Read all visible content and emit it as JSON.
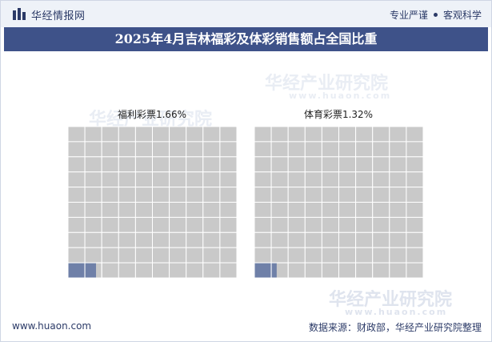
{
  "header": {
    "brand_name": "华经情报网",
    "brand_icon": "bar-logo-icon",
    "tagline_left": "专业严谨",
    "tagline_right": "客观科学"
  },
  "chart_title": "2025年4月吉林福彩及体彩销售额占全国比重",
  "watermark": {
    "text": "华经产业研究院",
    "url": "www.huaon.com"
  },
  "footer": {
    "url": "www.huaon.com",
    "source": "数据来源：财政部，华经产业研究院整理"
  },
  "colors": {
    "title_bg": "#3e5289",
    "cell_empty": "#c9c9c9",
    "cell_filled": "#6f80a8",
    "grid_line": "#ffffff"
  },
  "chart_data": [
    {
      "type": "waffle",
      "label": "福利彩票1.66%",
      "category": "福利彩票",
      "value": 1.66,
      "unit": "%",
      "grid": [
        10,
        10
      ]
    },
    {
      "type": "waffle",
      "label": "体育彩票1.32%",
      "category": "体育彩票",
      "value": 1.32,
      "unit": "%",
      "grid": [
        10,
        10
      ]
    }
  ]
}
